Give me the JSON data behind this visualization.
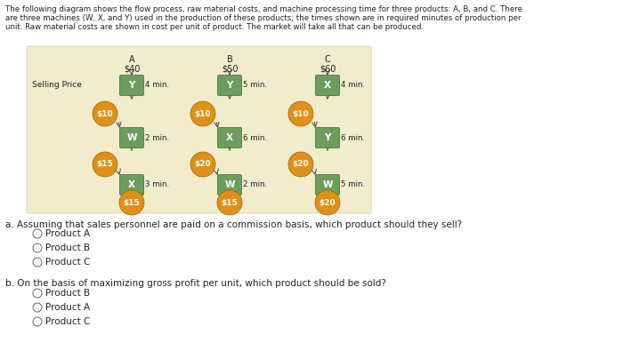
{
  "header_line1": "The following diagram shows the flow process, raw material costs, and machine processing time for three products: A, B, and C. There",
  "header_line2": "are three machines (W, X, and Y) used in the production of these products; the times shown are in required minutes of production per",
  "header_line3": "unit. Raw material costs are shown in cost per unit of product. The market will take all that can be produced.",
  "bg_color": "#f0eccc",
  "box_color": "#6b9e5e",
  "circle_color": "#e09018",
  "text_color": "#222222",
  "selling_price_label": "Selling Price",
  "products": [
    {
      "name": "A",
      "price": "$40",
      "machines": [
        {
          "label": "Y",
          "time": "4 min."
        },
        {
          "label": "W",
          "time": "2 min."
        },
        {
          "label": "X",
          "time": "3 min."
        }
      ],
      "raw_costs": [
        "$10",
        "$15",
        "$15"
      ]
    },
    {
      "name": "B",
      "price": "$50",
      "machines": [
        {
          "label": "Y",
          "time": "5 min."
        },
        {
          "label": "X",
          "time": "6 min."
        },
        {
          "label": "W",
          "time": "2 min."
        }
      ],
      "raw_costs": [
        "$10",
        "$20",
        "$15"
      ]
    },
    {
      "name": "C",
      "price": "$60",
      "machines": [
        {
          "label": "X",
          "time": "4 min."
        },
        {
          "label": "Y",
          "time": "6 min."
        },
        {
          "label": "W",
          "time": "5 min."
        }
      ],
      "raw_costs": [
        "$10",
        "$20",
        "$20"
      ]
    }
  ],
  "question_a": "a. Assuming that sales personnel are paid on a commission basis, which product should they sell?",
  "options_a": [
    "Product A",
    "Product B",
    "Product C"
  ],
  "question_b": "b. On the basis of maximizing gross profit per unit, which product should be sold?",
  "options_b": [
    "Product B",
    "Product A",
    "Product C"
  ]
}
